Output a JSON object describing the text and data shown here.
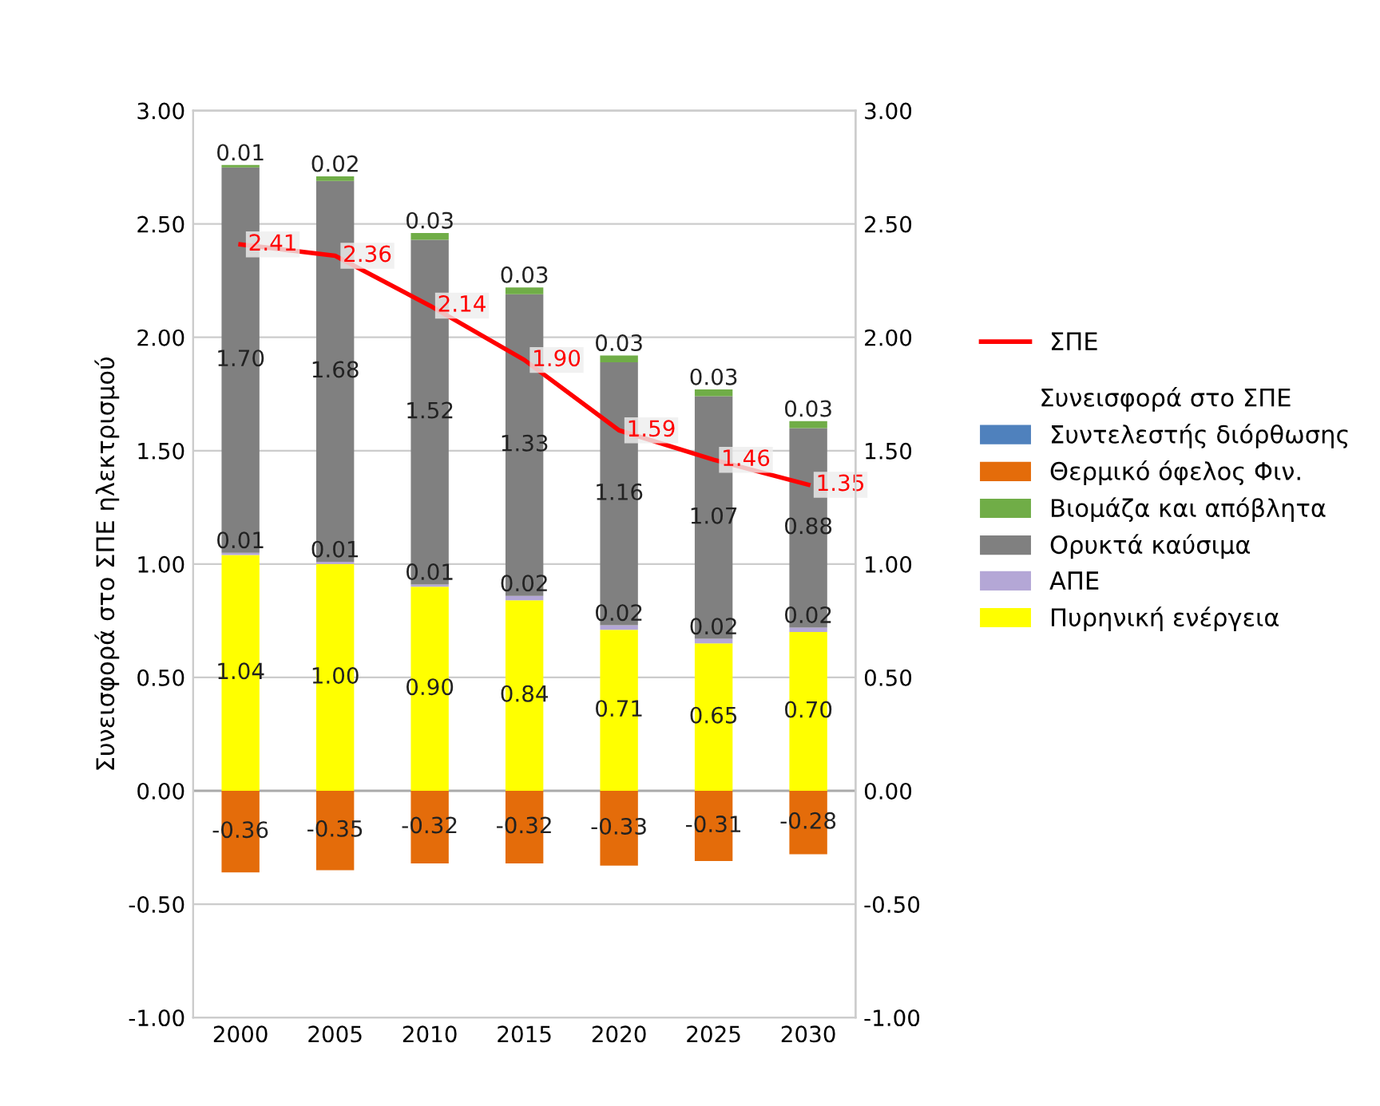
{
  "chart_data": {
    "type": "bar",
    "stacked": true,
    "ylabel": "Συνεισφορά στο ΣΠΕ ηλεκτρισμού",
    "legend_title": "Συνεισφορά στο ΣΠΕ",
    "legend": "right",
    "grid": "y",
    "categories": [
      "2000",
      "2005",
      "2010",
      "2015",
      "2020",
      "2025",
      "2030"
    ],
    "ylim": [
      -1,
      3
    ],
    "yticks": [
      {
        "value": -1,
        "label": "-1.00"
      },
      {
        "value": -0.5,
        "label": "-0.50"
      },
      {
        "value": 0,
        "label": "0.00"
      },
      {
        "value": 0.5,
        "label": "0.50"
      },
      {
        "value": 1,
        "label": "1.00"
      },
      {
        "value": 1.5,
        "label": "1.50"
      },
      {
        "value": 2,
        "label": "2.00"
      },
      {
        "value": 2.5,
        "label": "2.50"
      },
      {
        "value": 3,
        "label": "3.00"
      }
    ],
    "y2lim": [
      -1,
      3
    ],
    "y2ticks": [
      {
        "value": -1,
        "label": "-1.00"
      },
      {
        "value": -0.5,
        "label": "-0.50"
      },
      {
        "value": 0,
        "label": "0.00"
      },
      {
        "value": 0.5,
        "label": "0.50"
      },
      {
        "value": 1,
        "label": "1.00"
      },
      {
        "value": 1.5,
        "label": "1.50"
      },
      {
        "value": 2,
        "label": "2.00"
      },
      {
        "value": 2.5,
        "label": "2.50"
      },
      {
        "value": 3,
        "label": "3.00"
      }
    ],
    "series": [
      {
        "name": "Πυρηνική ενέργεια",
        "color": "#ffff00",
        "values": [
          1.04,
          1.0,
          0.9,
          0.84,
          0.71,
          0.65,
          0.7
        ],
        "value_labels": [
          "1.04",
          "1.00",
          "0.90",
          "0.84",
          "0.71",
          "0.65",
          "0.70"
        ]
      },
      {
        "name": "ΑΠΕ",
        "color": "#b4a7d6",
        "values": [
          0.01,
          0.01,
          0.01,
          0.02,
          0.02,
          0.02,
          0.02
        ],
        "value_labels": [
          "0.01",
          "0.01",
          "0.01",
          "0.02",
          "0.02",
          "0.02",
          "0.02"
        ]
      },
      {
        "name": "Ορυκτά καύσιμα",
        "color": "#808080",
        "values": [
          1.7,
          1.68,
          1.52,
          1.33,
          1.16,
          1.07,
          0.88
        ],
        "value_labels": [
          "1.70",
          "1.68",
          "1.52",
          "1.33",
          "1.16",
          "1.07",
          "0.88"
        ]
      },
      {
        "name": "Βιομάζα και απόβλητα",
        "color": "#70ad47",
        "values": [
          0.01,
          0.02,
          0.03,
          0.03,
          0.03,
          0.03,
          0.03
        ],
        "value_labels": [
          "0.01",
          "0.02",
          "0.03",
          "0.03",
          "0.03",
          "0.03",
          "0.03"
        ]
      },
      {
        "name": "Θερμικό όφελος Φιν.",
        "color": "#e46c0a",
        "values": [
          -0.36,
          -0.35,
          -0.32,
          -0.32,
          -0.33,
          -0.31,
          -0.28
        ],
        "value_labels": [
          "-0.36",
          "-0.35",
          "-0.32",
          "-0.32",
          "-0.33",
          "-0.31",
          "-0.28"
        ]
      },
      {
        "name": "Συντελεστής διόρθωσης",
        "color": "#4f81bd",
        "values": [
          null,
          null,
          null,
          null,
          null,
          null,
          null
        ]
      },
      {
        "name": "ΣΠΕ",
        "type": "line",
        "color": "#ff0000",
        "values": [
          2.41,
          2.36,
          2.14,
          1.9,
          1.59,
          1.46,
          1.35
        ],
        "value_labels": [
          "2.41",
          "2.36",
          "2.14",
          "1.90",
          "1.59",
          "1.46",
          "1.35"
        ]
      }
    ]
  }
}
